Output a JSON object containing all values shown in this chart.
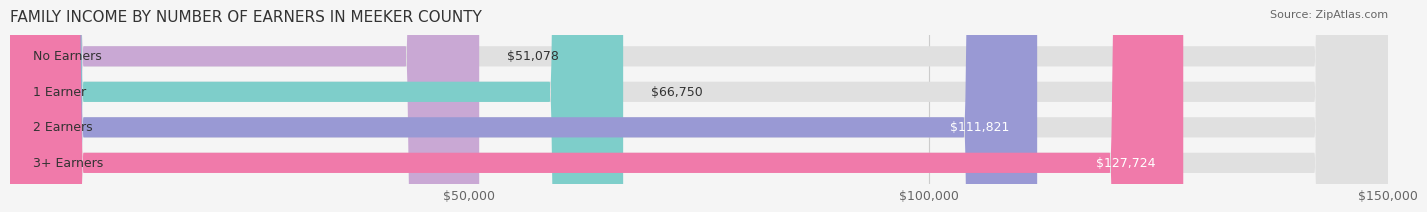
{
  "title": "FAMILY INCOME BY NUMBER OF EARNERS IN MEEKER COUNTY",
  "source": "Source: ZipAtlas.com",
  "categories": [
    "No Earners",
    "1 Earner",
    "2 Earners",
    "3+ Earners"
  ],
  "values": [
    51078,
    66750,
    111821,
    127724
  ],
  "bar_colors": [
    "#c9a8d4",
    "#7ececa",
    "#9999d4",
    "#f07aaa"
  ],
  "label_colors": [
    "#555555",
    "#555555",
    "#ffffff",
    "#ffffff"
  ],
  "xlim": [
    0,
    150000
  ],
  "xticks": [
    50000,
    100000,
    150000
  ],
  "xtick_labels": [
    "$50,000",
    "$100,000",
    "$150,000"
  ],
  "bar_height": 0.55,
  "bg_color": "#f0f0f0",
  "bar_bg_color": "#e8e8e8",
  "title_fontsize": 11,
  "label_fontsize": 9,
  "value_fontsize": 9,
  "source_fontsize": 8
}
